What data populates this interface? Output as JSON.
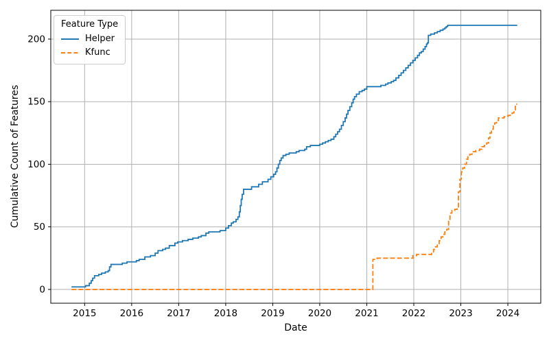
{
  "figure": {
    "background": "#ffffff"
  },
  "chart_data": {
    "type": "line",
    "title": "",
    "xlabel": "Date",
    "ylabel": "Cumulative Count of Features",
    "xlim": [
      2014.28,
      2024.7
    ],
    "ylim": [
      -11,
      223
    ],
    "x_ticks": [
      2015,
      2016,
      2017,
      2018,
      2019,
      2020,
      2021,
      2022,
      2023,
      2024
    ],
    "y_ticks": [
      0,
      50,
      100,
      150,
      200
    ],
    "grid": true,
    "grid_color": "#b0b0b0",
    "spine_color": "#000000",
    "legend": {
      "title": "Feature Type",
      "position": "upper-left",
      "entries": [
        "Helper",
        "Kfunc"
      ]
    },
    "series": [
      {
        "name": "Helper",
        "color": "#1f77b4",
        "line_style": "solid",
        "step": "post",
        "points": [
          [
            2014.72,
            2
          ],
          [
            2015.02,
            3
          ],
          [
            2015.1,
            5
          ],
          [
            2015.14,
            7
          ],
          [
            2015.17,
            9
          ],
          [
            2015.21,
            11
          ],
          [
            2015.3,
            12
          ],
          [
            2015.36,
            13
          ],
          [
            2015.44,
            14
          ],
          [
            2015.5,
            15
          ],
          [
            2015.53,
            18
          ],
          [
            2015.56,
            20
          ],
          [
            2015.8,
            21
          ],
          [
            2015.9,
            22
          ],
          [
            2016.1,
            23
          ],
          [
            2016.16,
            24
          ],
          [
            2016.28,
            26
          ],
          [
            2016.4,
            27
          ],
          [
            2016.5,
            29
          ],
          [
            2016.56,
            31
          ],
          [
            2016.66,
            32
          ],
          [
            2016.72,
            33
          ],
          [
            2016.8,
            35
          ],
          [
            2016.92,
            37
          ],
          [
            2016.98,
            38
          ],
          [
            2017.08,
            39
          ],
          [
            2017.2,
            40
          ],
          [
            2017.3,
            41
          ],
          [
            2017.42,
            42
          ],
          [
            2017.48,
            43
          ],
          [
            2017.58,
            45
          ],
          [
            2017.64,
            46
          ],
          [
            2017.88,
            47
          ],
          [
            2018.0,
            49
          ],
          [
            2018.06,
            51
          ],
          [
            2018.12,
            53
          ],
          [
            2018.16,
            54
          ],
          [
            2018.22,
            56
          ],
          [
            2018.26,
            58
          ],
          [
            2018.29,
            62
          ],
          [
            2018.31,
            67
          ],
          [
            2018.33,
            72
          ],
          [
            2018.35,
            76
          ],
          [
            2018.38,
            80
          ],
          [
            2018.55,
            82
          ],
          [
            2018.7,
            84
          ],
          [
            2018.78,
            86
          ],
          [
            2018.9,
            88
          ],
          [
            2018.96,
            90
          ],
          [
            2019.02,
            92
          ],
          [
            2019.06,
            94
          ],
          [
            2019.09,
            97
          ],
          [
            2019.12,
            100
          ],
          [
            2019.15,
            103
          ],
          [
            2019.18,
            105
          ],
          [
            2019.22,
            107
          ],
          [
            2019.28,
            108
          ],
          [
            2019.35,
            109
          ],
          [
            2019.5,
            110
          ],
          [
            2019.56,
            111
          ],
          [
            2019.68,
            112
          ],
          [
            2019.72,
            114
          ],
          [
            2019.8,
            115
          ],
          [
            2020.0,
            116
          ],
          [
            2020.06,
            117
          ],
          [
            2020.12,
            118
          ],
          [
            2020.18,
            119
          ],
          [
            2020.24,
            120
          ],
          [
            2020.3,
            122
          ],
          [
            2020.34,
            124
          ],
          [
            2020.38,
            126
          ],
          [
            2020.42,
            128
          ],
          [
            2020.46,
            131
          ],
          [
            2020.5,
            134
          ],
          [
            2020.54,
            137
          ],
          [
            2020.57,
            140
          ],
          [
            2020.6,
            143
          ],
          [
            2020.64,
            146
          ],
          [
            2020.68,
            149
          ],
          [
            2020.71,
            152
          ],
          [
            2020.74,
            154
          ],
          [
            2020.78,
            156
          ],
          [
            2020.84,
            158
          ],
          [
            2020.9,
            159
          ],
          [
            2020.95,
            160
          ],
          [
            2021.0,
            162
          ],
          [
            2021.3,
            163
          ],
          [
            2021.4,
            164
          ],
          [
            2021.45,
            165
          ],
          [
            2021.52,
            166
          ],
          [
            2021.57,
            167
          ],
          [
            2021.62,
            169
          ],
          [
            2021.68,
            171
          ],
          [
            2021.73,
            173
          ],
          [
            2021.78,
            175
          ],
          [
            2021.83,
            177
          ],
          [
            2021.88,
            179
          ],
          [
            2021.93,
            181
          ],
          [
            2021.98,
            183
          ],
          [
            2022.03,
            185
          ],
          [
            2022.08,
            187
          ],
          [
            2022.12,
            189
          ],
          [
            2022.16,
            190
          ],
          [
            2022.2,
            192
          ],
          [
            2022.24,
            194
          ],
          [
            2022.27,
            196
          ],
          [
            2022.29,
            197
          ],
          [
            2022.31,
            203
          ],
          [
            2022.36,
            204
          ],
          [
            2022.44,
            205
          ],
          [
            2022.5,
            206
          ],
          [
            2022.56,
            207
          ],
          [
            2022.62,
            208
          ],
          [
            2022.66,
            209
          ],
          [
            2022.69,
            210
          ],
          [
            2022.72,
            211
          ],
          [
            2024.2,
            211
          ]
        ]
      },
      {
        "name": "Kfunc",
        "color": "#ff7f0e",
        "line_style": "dashed",
        "step": "post",
        "points": [
          [
            2014.72,
            0
          ],
          [
            2021.13,
            24
          ],
          [
            2021.22,
            25
          ],
          [
            2021.98,
            27
          ],
          [
            2022.06,
            28
          ],
          [
            2022.38,
            30
          ],
          [
            2022.42,
            32
          ],
          [
            2022.46,
            34
          ],
          [
            2022.5,
            36
          ],
          [
            2022.54,
            39
          ],
          [
            2022.58,
            42
          ],
          [
            2022.62,
            44
          ],
          [
            2022.66,
            46
          ],
          [
            2022.7,
            48
          ],
          [
            2022.74,
            56
          ],
          [
            2022.77,
            61
          ],
          [
            2022.81,
            63
          ],
          [
            2022.87,
            64
          ],
          [
            2022.92,
            65
          ],
          [
            2022.95,
            78
          ],
          [
            2022.98,
            88
          ],
          [
            2023.01,
            94
          ],
          [
            2023.04,
            97
          ],
          [
            2023.08,
            100
          ],
          [
            2023.12,
            104
          ],
          [
            2023.15,
            106
          ],
          [
            2023.19,
            108
          ],
          [
            2023.24,
            110
          ],
          [
            2023.32,
            111
          ],
          [
            2023.4,
            112
          ],
          [
            2023.45,
            114
          ],
          [
            2023.5,
            115
          ],
          [
            2023.55,
            117
          ],
          [
            2023.59,
            121
          ],
          [
            2023.62,
            125
          ],
          [
            2023.65,
            128
          ],
          [
            2023.69,
            131
          ],
          [
            2023.72,
            133
          ],
          [
            2023.76,
            135
          ],
          [
            2023.8,
            137
          ],
          [
            2023.92,
            138
          ],
          [
            2024.0,
            139
          ],
          [
            2024.05,
            140
          ],
          [
            2024.09,
            141
          ],
          [
            2024.13,
            143
          ],
          [
            2024.16,
            148
          ],
          [
            2024.2,
            148
          ]
        ]
      }
    ]
  }
}
